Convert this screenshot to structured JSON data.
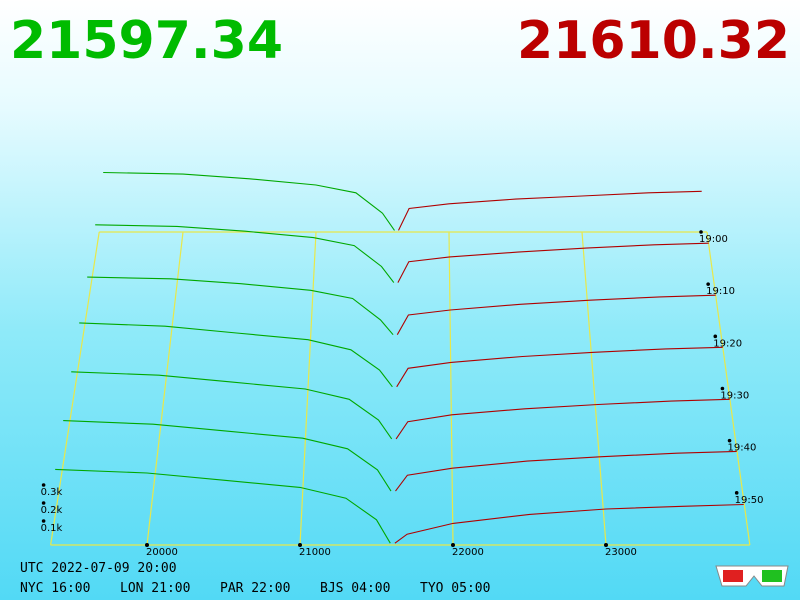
{
  "chart_data": {
    "type": "depth3d",
    "bid_price": 21597.34,
    "ask_price": 21610.32,
    "xlim": [
      19370,
      23940
    ],
    "xticks": [
      20000,
      21000,
      22000,
      23000
    ],
    "zlim": [
      0,
      500
    ],
    "zticks": [
      {
        "value": 100,
        "label": "0.1k"
      },
      {
        "value": 200,
        "label": "0.2k"
      },
      {
        "value": 300,
        "label": "0.3k"
      }
    ],
    "times": [
      "19:00",
      "19:10",
      "19:20",
      "19:30",
      "19:40",
      "19:50",
      null
    ],
    "bid_prices": [
      19400,
      20000,
      20500,
      21000,
      21300,
      21500,
      21590
    ],
    "ask_prices": [
      21620,
      21700,
      22000,
      22500,
      23000,
      23500,
      23900
    ],
    "bid_color": "#00a800",
    "ask_color": "#b00000",
    "frame_color": "#e8e84a",
    "slices": [
      {
        "bids": [
          380,
          370,
          340,
          300,
          250,
          120,
          10
        ],
        "asks": [
          10,
          150,
          180,
          210,
          230,
          250,
          260
        ]
      },
      {
        "bids": [
          370,
          360,
          330,
          290,
          240,
          110,
          10
        ],
        "asks": [
          10,
          140,
          170,
          200,
          225,
          245,
          255
        ]
      },
      {
        "bids": [
          360,
          350,
          320,
          280,
          230,
          100,
          10
        ],
        "asks": [
          10,
          130,
          160,
          195,
          220,
          240,
          250
        ]
      },
      {
        "bids": [
          390,
          370,
          330,
          290,
          230,
          110,
          10
        ],
        "asks": [
          10,
          120,
          155,
          190,
          215,
          235,
          245
        ]
      },
      {
        "bids": [
          400,
          380,
          340,
          300,
          240,
          120,
          10
        ],
        "asks": [
          10,
          110,
          150,
          185,
          210,
          230,
          240
        ]
      },
      {
        "bids": [
          410,
          390,
          350,
          310,
          250,
          130,
          10
        ],
        "asks": [
          10,
          100,
          140,
          180,
          205,
          225,
          235
        ]
      },
      {
        "bids": [
          420,
          400,
          360,
          320,
          260,
          140,
          10
        ],
        "asks": [
          10,
          60,
          120,
          170,
          200,
          215,
          225
        ]
      }
    ]
  },
  "footer": {
    "utc": "UTC 2022-07-09 20:00",
    "cities": [
      "NYC 16:00",
      "LON 21:00",
      "PAR 22:00",
      "BJS 04:00",
      "TYO 05:00"
    ]
  }
}
